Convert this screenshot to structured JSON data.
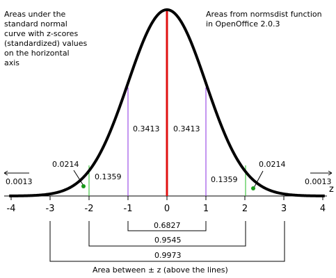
{
  "notes": {
    "left": "Areas under the\nstandard normal\ncurve with z-scores\n(standardized) values\non the horizontal\naxis",
    "right": "Areas from normsdist function\nin OpenOffice 2.0.3"
  },
  "axis": {
    "label": "z",
    "ticks": [
      "-4",
      "-3",
      "-2",
      "-1",
      "0",
      "1",
      "2",
      "3",
      "4"
    ]
  },
  "areas": {
    "center_left": "0.3413",
    "center_right": "0.3413",
    "mid_left": "0.1359",
    "mid_right": "0.1359",
    "tail2_left": "0.0214",
    "tail2_right": "0.0214",
    "tail3_left": "0.0013",
    "tail3_right": "0.0013"
  },
  "brackets": {
    "one_sd": "0.6827",
    "two_sd": "0.9545",
    "three_sd": "0.9973"
  },
  "caption": "Area between ± z (above the lines)",
  "colors": {
    "curve": "#000000",
    "mean_line": "#e01010",
    "sd1_lines": "#8a2be2",
    "sd2_lines": "#22bb22",
    "dot": "#1a9a1a"
  }
}
